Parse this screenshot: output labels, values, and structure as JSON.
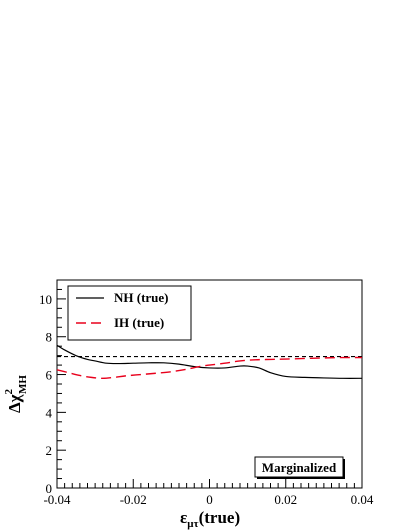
{
  "chart_data": {
    "type": "line",
    "xlabel": "ε_μτ(true)",
    "ylabel": "Δχ²_MH",
    "xlim": [
      -0.04,
      0.04
    ],
    "ylim": [
      0,
      11
    ],
    "x_ticks": [
      "-0.04",
      "-0.02",
      "0",
      "0.02",
      "0.04"
    ],
    "y_ticks": [
      "0",
      "2",
      "4",
      "6",
      "8",
      "10"
    ],
    "annotation": "Marginalized",
    "legend_position": "top-left",
    "reference_line": {
      "y": 6.95,
      "style": "dashed",
      "color": "#000000"
    },
    "series": [
      {
        "name": "NH (true)",
        "color": "#000000",
        "style": "solid",
        "x": [
          -0.04,
          -0.038,
          -0.035,
          -0.032,
          -0.03,
          -0.027,
          -0.024,
          -0.02,
          -0.016,
          -0.012,
          -0.008,
          -0.004,
          0.0,
          0.004,
          0.008,
          0.01,
          0.013,
          0.016,
          0.02,
          0.025,
          0.03,
          0.035,
          0.04
        ],
        "values": [
          7.55,
          7.3,
          7.0,
          6.8,
          6.72,
          6.6,
          6.58,
          6.6,
          6.62,
          6.62,
          6.55,
          6.42,
          6.35,
          6.35,
          6.45,
          6.45,
          6.35,
          6.1,
          5.9,
          5.85,
          5.82,
          5.8,
          5.8
        ]
      },
      {
        "name": "IH (true)",
        "color": "#e8001c",
        "style": "dashed",
        "x": [
          -0.04,
          -0.037,
          -0.034,
          -0.031,
          -0.028,
          -0.025,
          -0.022,
          -0.018,
          -0.014,
          -0.01,
          -0.006,
          -0.002,
          0.0,
          0.004,
          0.008,
          0.012,
          0.016,
          0.02,
          0.025,
          0.03,
          0.035,
          0.04
        ],
        "values": [
          6.25,
          6.1,
          5.95,
          5.85,
          5.8,
          5.85,
          5.93,
          6.0,
          6.07,
          6.15,
          6.28,
          6.45,
          6.5,
          6.6,
          6.72,
          6.78,
          6.8,
          6.82,
          6.85,
          6.88,
          6.9,
          6.9
        ]
      }
    ]
  }
}
